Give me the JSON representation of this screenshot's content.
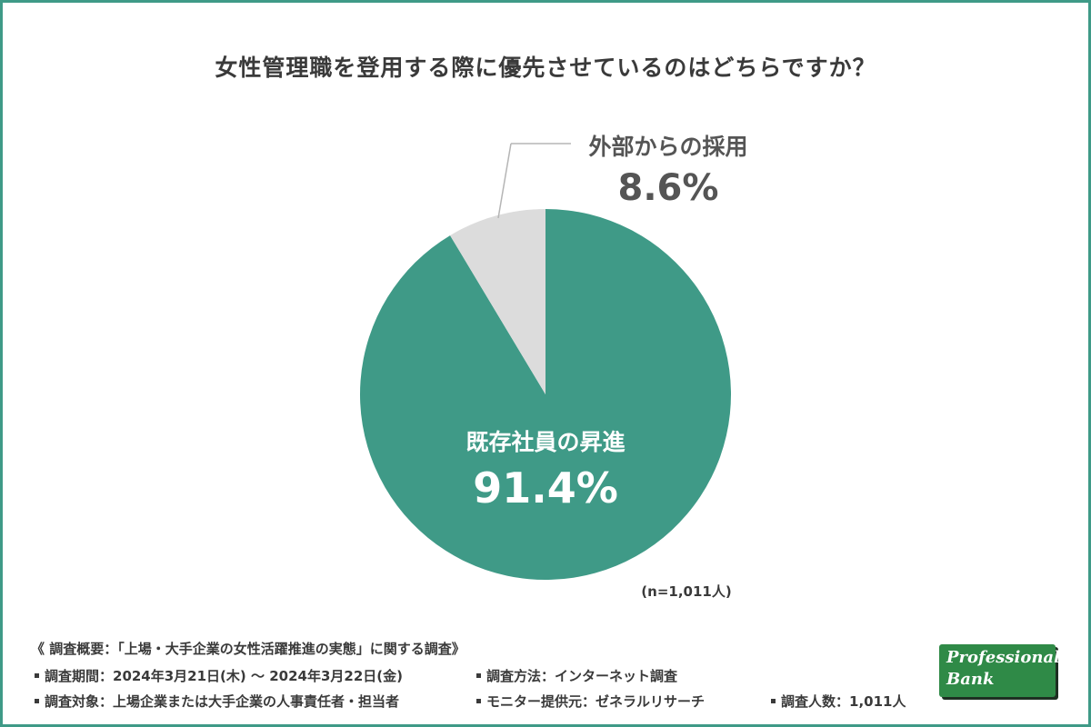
{
  "title": "女性管理職を登用する際に優先させているのはどちらですか？",
  "colors": {
    "main": "#3f9a87",
    "minor": "#dcdcdc",
    "border": "#3f9a87",
    "logo": "#2f8a47"
  },
  "chart_data": {
    "type": "pie",
    "title": "女性管理職を登用する際に優先させているのはどちらですか？",
    "slices": [
      {
        "label": "既存社員の昇進",
        "value": 91.4,
        "display": "91.4%",
        "color": "#3f9a87"
      },
      {
        "label": "外部からの採用",
        "value": 8.6,
        "display": "8.6%",
        "color": "#dcdcdc"
      }
    ],
    "note": "(n=1,011人)"
  },
  "footer": {
    "heading": "《 調査概要：「上場・大手企業の女性活躍推進の実態」に関する調査》",
    "period": "調査期間：2024年3月21日(木) 〜 2024年3月22日(金)",
    "method": "調査方法：インターネット調査",
    "target": "調査対象：上場企業または大手企業の人事責任者・担当者",
    "provider": "モニター提供元：ゼネラルリサーチ",
    "count": "調査人数：1,011人"
  },
  "logo": {
    "line1": "Professional",
    "line2": "Bank"
  }
}
